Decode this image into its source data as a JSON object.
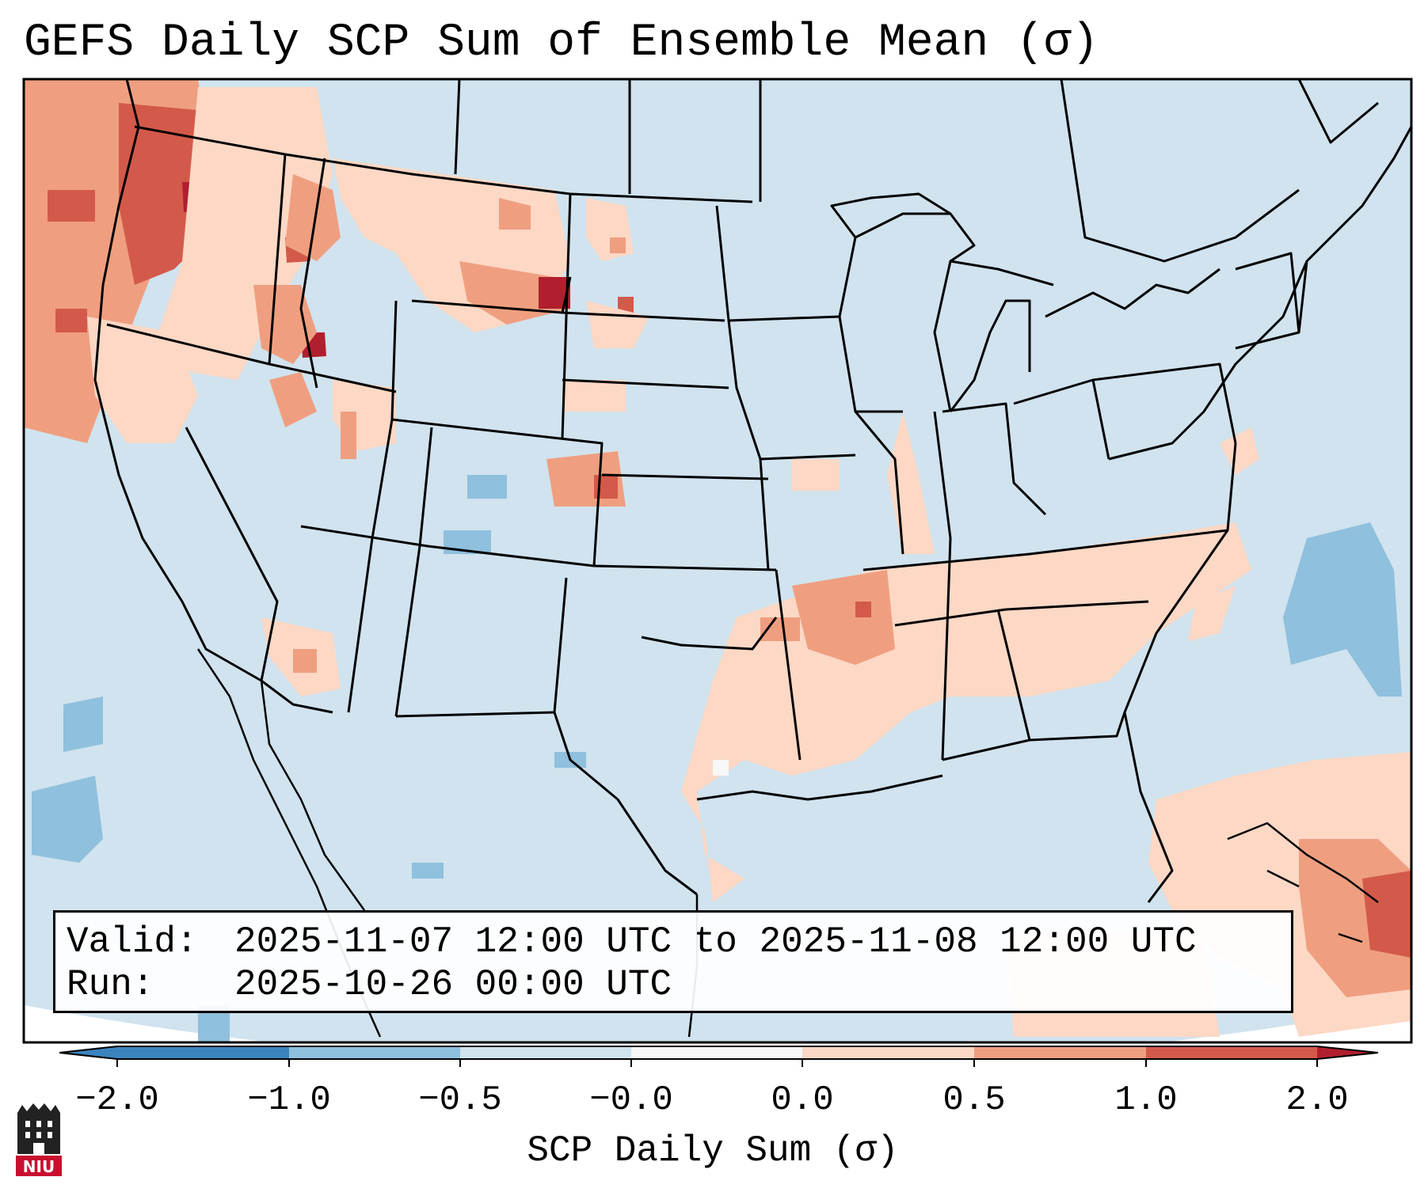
{
  "title": "GEFS Daily SCP Sum of Ensemble Mean (σ)",
  "info": {
    "valid_key": "Valid:",
    "valid_value": "2025-11-07 12:00 UTC to 2025-11-08 12:00 UTC",
    "run_key": "Run:",
    "run_value": "2025-10-26 00:00 UTC"
  },
  "colorbar": {
    "title": "SCP Daily Sum (σ)",
    "ticks": [
      "−2.0",
      "−1.0",
      "−0.5",
      "−0.0",
      "0.0",
      "0.5",
      "1.0",
      "2.0"
    ],
    "colors": [
      "#3b83bd",
      "#8fc0dd",
      "#d0e3ee",
      "#f7f7f7",
      "#fcd8c5",
      "#ef9f80",
      "#d35a4a",
      "#b11f2e"
    ],
    "extend": "both"
  },
  "map": {
    "region": "Contiguous United States",
    "background_color": "#d0e3ee",
    "ocean_outside_color": "#ffffff"
  },
  "logo": {
    "text": "NIU"
  }
}
